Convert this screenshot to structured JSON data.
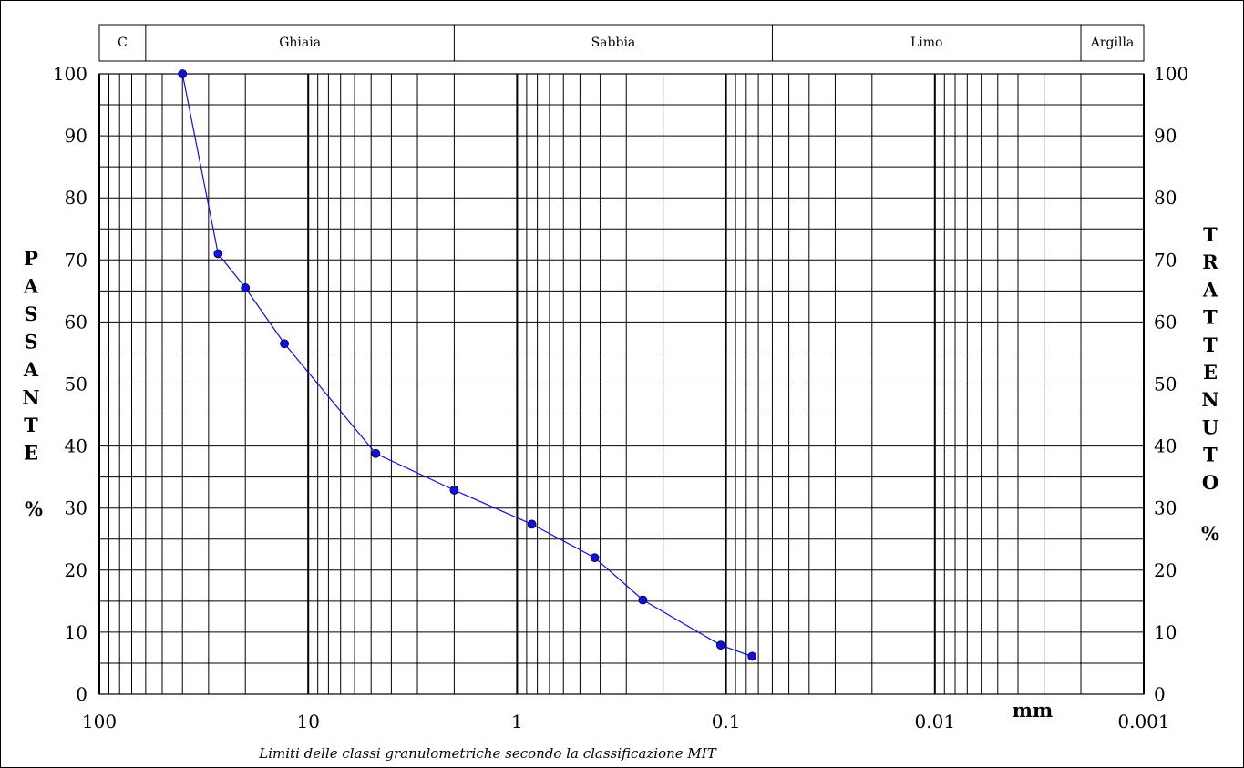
{
  "chart_data": {
    "type": "line",
    "title": "",
    "xlabel": "mm",
    "caption": "Limiti delle classi granulometriche secondo la classificazione MIT",
    "x_scale": "log",
    "x_direction": "decreasing",
    "xlim": [
      100,
      0.001
    ],
    "ylim": [
      0,
      100
    ],
    "grid": true,
    "x_tick_labels": [
      {
        "value": 100,
        "label": "100"
      },
      {
        "value": 10,
        "label": "10"
      },
      {
        "value": 1,
        "label": "1"
      },
      {
        "value": 0.1,
        "label": "0.1"
      },
      {
        "value": 0.01,
        "label": "0.01"
      },
      {
        "value": 0.001,
        "label": "0.001"
      }
    ],
    "y_left": {
      "label_letters": [
        "P",
        "A",
        "S",
        "S",
        "A",
        "N",
        "T",
        "E"
      ],
      "unit": "%",
      "ticks": [
        0,
        10,
        20,
        30,
        40,
        50,
        60,
        70,
        80,
        90,
        100
      ]
    },
    "y_right": {
      "label_letters": [
        "T",
        "R",
        "A",
        "T",
        "T",
        "E",
        "N",
        "U",
        "T",
        "O"
      ],
      "unit": "%",
      "ticks": [
        100,
        90,
        80,
        70,
        60,
        50,
        40,
        30,
        20,
        10,
        0
      ]
    },
    "classes": [
      {
        "label": "C",
        "from": 100,
        "to": 60
      },
      {
        "label": "Ghiaia",
        "from": 60,
        "to": 2
      },
      {
        "label": "Sabbia",
        "from": 2,
        "to": 0.06
      },
      {
        "label": "Limo",
        "from": 0.06,
        "to": 0.002
      },
      {
        "label": "Argilla",
        "from": 0.002,
        "to": 0.001
      }
    ],
    "series": [
      {
        "color": "#1010e0",
        "points": [
          {
            "x": 40,
            "y": 100
          },
          {
            "x": 27,
            "y": 71
          },
          {
            "x": 20,
            "y": 65.5
          },
          {
            "x": 13,
            "y": 56.5
          },
          {
            "x": 4.75,
            "y": 38.8
          },
          {
            "x": 2,
            "y": 32.9
          },
          {
            "x": 0.85,
            "y": 27.4
          },
          {
            "x": 0.425,
            "y": 22
          },
          {
            "x": 0.25,
            "y": 15.2
          },
          {
            "x": 0.106,
            "y": 7.9
          },
          {
            "x": 0.075,
            "y": 6.1
          }
        ]
      }
    ]
  }
}
